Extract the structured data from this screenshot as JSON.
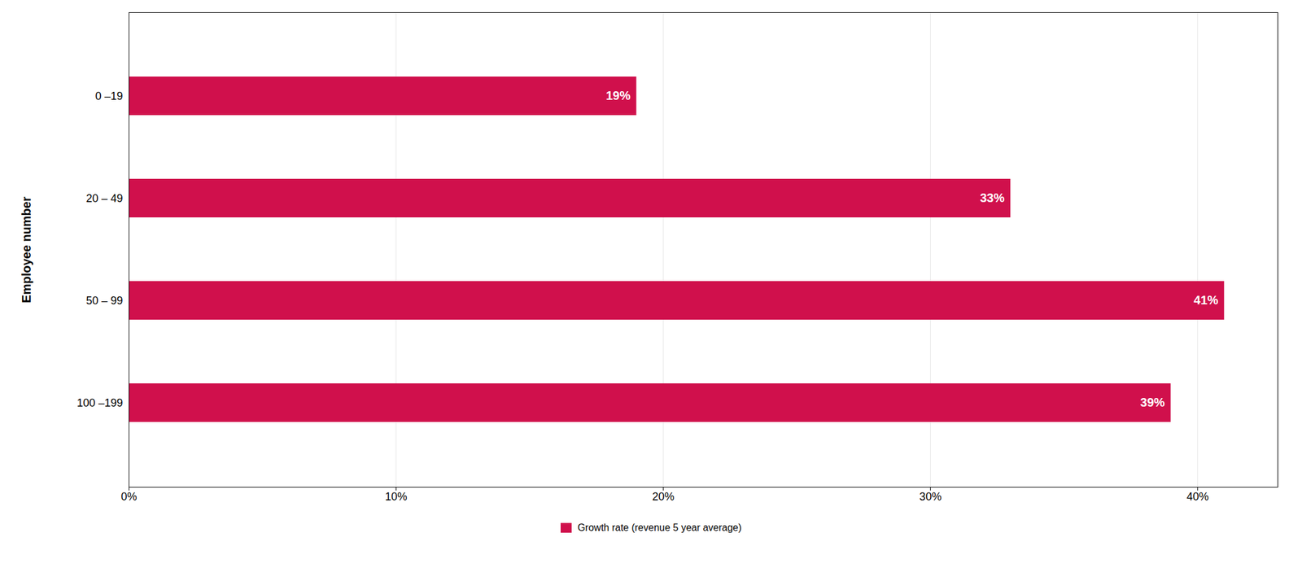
{
  "chart_data": {
    "type": "bar",
    "orientation": "horizontal",
    "categories": [
      "0 –19",
      "20 – 49",
      "50 – 99",
      "100 –199"
    ],
    "series": [
      {
        "name": "Growth rate (revenue 5 year average)",
        "color": "#D0104C",
        "values": [
          19,
          33,
          41,
          39
        ],
        "value_labels": [
          "19%",
          "33%",
          "41%",
          "39%"
        ]
      }
    ],
    "ylabel": "Employee number",
    "xlim": [
      0,
      43
    ],
    "xticks": [
      {
        "value": 0,
        "label": "0%"
      },
      {
        "value": 10,
        "label": "10%"
      },
      {
        "value": 20,
        "label": "20%"
      },
      {
        "value": 30,
        "label": "30%"
      },
      {
        "value": 40,
        "label": "40%"
      }
    ],
    "grid": true,
    "legend": "bottom",
    "data_labels": true
  }
}
